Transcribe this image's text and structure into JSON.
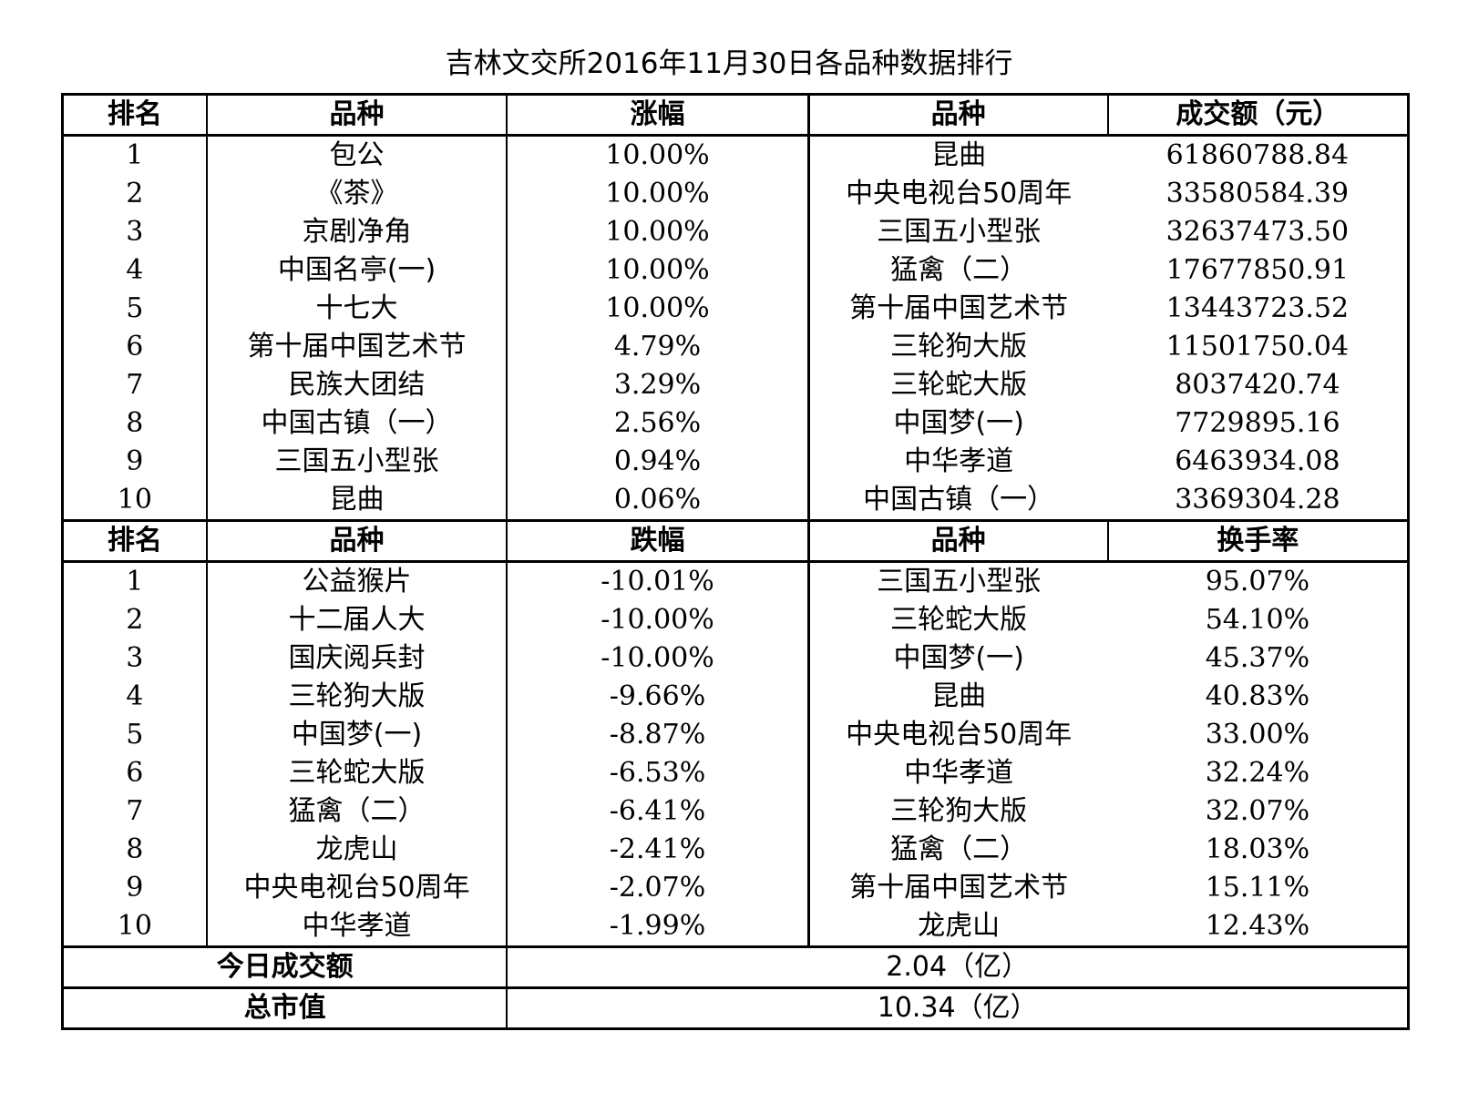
{
  "title": "吉林文交所2016年11月30日各品种数据排行",
  "top_headers": [
    "排名",
    "品种",
    "涨幅",
    "品种",
    "成交额（元）"
  ],
  "top_rows": [
    {
      "rank": "1",
      "gain_name": "包公",
      "gain": "10.00%",
      "vol_name": "昆曲",
      "volume": "61860788.84"
    },
    {
      "rank": "2",
      "gain_name": "《茶》",
      "gain": "10.00%",
      "vol_name": "中央电视台50周年",
      "volume": "33580584.39"
    },
    {
      "rank": "3",
      "gain_name": "京剧净角",
      "gain": "10.00%",
      "vol_name": "三国五小型张",
      "volume": "32637473.50"
    },
    {
      "rank": "4",
      "gain_name": "中国名亭(一)",
      "gain": "10.00%",
      "vol_name": "猛禽（二）",
      "volume": "17677850.91"
    },
    {
      "rank": "5",
      "gain_name": "十七大",
      "gain": "10.00%",
      "vol_name": "第十届中国艺术节",
      "volume": "13443723.52"
    },
    {
      "rank": "6",
      "gain_name": "第十届中国艺术节",
      "gain": "4.79%",
      "vol_name": "三轮狗大版",
      "volume": "11501750.04"
    },
    {
      "rank": "7",
      "gain_name": "民族大团结",
      "gain": "3.29%",
      "vol_name": "三轮蛇大版",
      "volume": "8037420.74"
    },
    {
      "rank": "8",
      "gain_name": "中国古镇（一）",
      "gain": "2.56%",
      "vol_name": "中国梦(一)",
      "volume": "7729895.16"
    },
    {
      "rank": "9",
      "gain_name": "三国五小型张",
      "gain": "0.94%",
      "vol_name": "中华孝道",
      "volume": "6463934.08"
    },
    {
      "rank": "10",
      "gain_name": "昆曲",
      "gain": "0.06%",
      "vol_name": "中国古镇（一）",
      "volume": "3369304.28"
    }
  ],
  "bottom_headers": [
    "排名",
    "品种",
    "跌幅",
    "品种",
    "换手率"
  ],
  "bottom_rows": [
    {
      "rank": "1",
      "loss_name": "公益猴片",
      "loss": "-10.01%",
      "turn_name": "三国五小型张",
      "turnover": "95.07%"
    },
    {
      "rank": "2",
      "loss_name": "十二届人大",
      "loss": "-10.00%",
      "turn_name": "三轮蛇大版",
      "turnover": "54.10%"
    },
    {
      "rank": "3",
      "loss_name": "国庆阅兵封",
      "loss": "-10.00%",
      "turn_name": "中国梦(一)",
      "turnover": "45.37%"
    },
    {
      "rank": "4",
      "loss_name": "三轮狗大版",
      "loss": "-9.66%",
      "turn_name": "昆曲",
      "turnover": "40.83%"
    },
    {
      "rank": "5",
      "loss_name": "中国梦(一)",
      "loss": "-8.87%",
      "turn_name": "中央电视台50周年",
      "turnover": "33.00%"
    },
    {
      "rank": "6",
      "loss_name": "三轮蛇大版",
      "loss": "-6.53%",
      "turn_name": "中华孝道",
      "turnover": "32.24%"
    },
    {
      "rank": "7",
      "loss_name": "猛禽（二）",
      "loss": "-6.41%",
      "turn_name": "三轮狗大版",
      "turnover": "32.07%"
    },
    {
      "rank": "8",
      "loss_name": "龙虎山",
      "loss": "-2.41%",
      "turn_name": "猛禽（二）",
      "turnover": "18.03%"
    },
    {
      "rank": "9",
      "loss_name": "中央电视台50周年",
      "loss": "-2.07%",
      "turn_name": "第十届中国艺术节",
      "turnover": "15.11%"
    },
    {
      "rank": "10",
      "loss_name": "中华孝道",
      "loss": "-1.99%",
      "turn_name": "龙虎山",
      "turnover": "12.43%"
    }
  ],
  "summary": {
    "today_label": "今日成交额",
    "today_value": "2.04（亿）",
    "market_label": "总市值",
    "market_value": "10.34（亿）"
  }
}
